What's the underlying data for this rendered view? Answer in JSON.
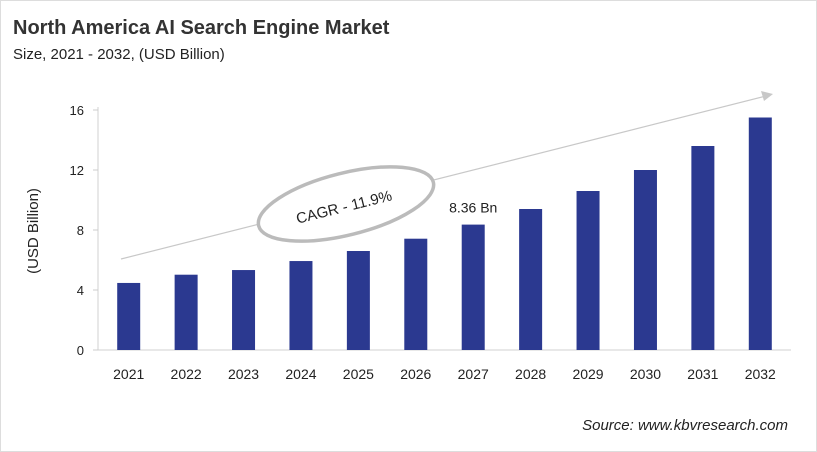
{
  "chart_data": {
    "type": "bar",
    "title": "North America AI Search Engine Market",
    "subtitle": "Size, 2021 - 2032, (USD Billion)",
    "ylabel": "(USD Billion)",
    "xlabel": "",
    "categories": [
      "2021",
      "2022",
      "2023",
      "2024",
      "2025",
      "2026",
      "2027",
      "2028",
      "2029",
      "2030",
      "2031",
      "2032"
    ],
    "values": [
      4.47,
      5.02,
      5.33,
      5.93,
      6.6,
      7.42,
      8.36,
      9.4,
      10.6,
      12.0,
      13.6,
      15.5
    ],
    "ylim": [
      0,
      16
    ],
    "yticks": [
      0,
      4,
      8,
      12,
      16
    ],
    "grid": false,
    "bar_color": "#2b3990",
    "annotations": {
      "data_label": "8.36 Bn",
      "data_label_category": "2027",
      "cagr": "CAGR - 11.9%"
    },
    "source": "Source: www.kbvresearch.com"
  }
}
